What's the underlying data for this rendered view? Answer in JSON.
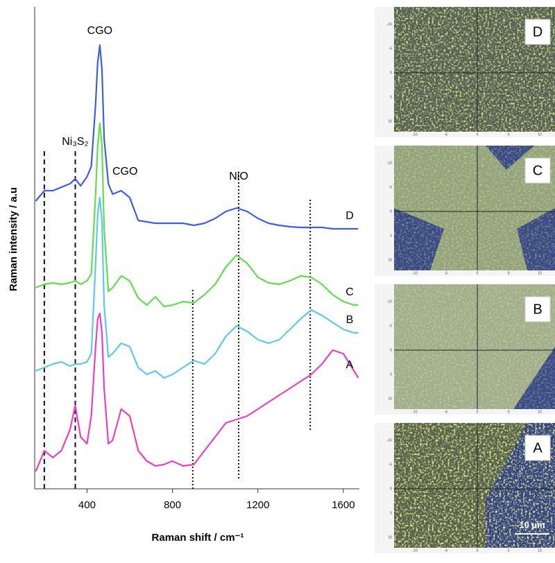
{
  "chart_data": {
    "type": "line",
    "x_label": "Raman shift / cm⁻¹",
    "y_label": "Raman intensity / a.u",
    "x": [
      160,
      200,
      240,
      280,
      320,
      345,
      370,
      400,
      420,
      440,
      450,
      460,
      470,
      480,
      500,
      520,
      560,
      600,
      640,
      680,
      720,
      760,
      800,
      850,
      900,
      950,
      1000,
      1050,
      1100,
      1150,
      1200,
      1250,
      1300,
      1350,
      1400,
      1450,
      1500,
      1550,
      1600,
      1650,
      1670
    ],
    "xlim": [
      155,
      1675
    ],
    "xticks": [
      400,
      800,
      1200,
      1600
    ],
    "ylim": [
      0,
      695
    ],
    "series": [
      {
        "name": "D",
        "color": "#3c5ee6",
        "values": [
          415,
          430,
          430,
          435,
          440,
          447,
          437,
          450,
          465,
          555,
          615,
          640,
          605,
          505,
          440,
          425,
          430,
          420,
          387,
          385,
          383,
          383,
          383,
          383,
          380,
          383,
          390,
          400,
          405,
          400,
          390,
          383,
          380,
          378,
          377,
          377,
          377,
          375,
          375,
          375,
          375
        ]
      },
      {
        "name": "C",
        "color": "#5ee04a",
        "values": [
          290,
          295,
          297,
          295,
          297,
          300,
          295,
          300,
          310,
          425,
          495,
          527,
          495,
          375,
          285,
          290,
          307,
          300,
          275,
          265,
          277,
          263,
          265,
          270,
          268,
          280,
          295,
          320,
          337,
          325,
          305,
          297,
          295,
          300,
          307,
          305,
          295,
          280,
          270,
          265,
          265
        ]
      },
      {
        "name": "B",
        "color": "#5cc8f0",
        "values": [
          170,
          175,
          180,
          183,
          177,
          180,
          180,
          183,
          195,
          325,
          395,
          420,
          385,
          265,
          190,
          195,
          210,
          205,
          175,
          165,
          170,
          160,
          165,
          175,
          185,
          180,
          195,
          220,
          235,
          227,
          215,
          210,
          215,
          230,
          245,
          258,
          250,
          240,
          230,
          225,
          225
        ]
      },
      {
        "name": "A",
        "color": "#ee3ec8",
        "values": [
          25,
          55,
          45,
          55,
          85,
          120,
          75,
          65,
          105,
          205,
          245,
          253,
          225,
          145,
          65,
          70,
          115,
          105,
          55,
          40,
          33,
          35,
          40,
          33,
          35,
          55,
          75,
          95,
          100,
          105,
          115,
          125,
          135,
          145,
          155,
          165,
          180,
          200,
          195,
          170,
          160
        ]
      }
    ],
    "reference_lines": [
      {
        "x": 200,
        "y": [
          0,
          490
        ],
        "style": "dashed"
      },
      {
        "x": 345,
        "y": [
          0,
          490
        ],
        "style": "dashed"
      },
      {
        "x": 895,
        "y": [
          0,
          290
        ],
        "style": "dotted"
      },
      {
        "x": 1110,
        "y": [
          15,
          460
        ],
        "style": "dotted"
      },
      {
        "x": 1445,
        "y": [
          85,
          420
        ],
        "style": "dotted"
      }
    ],
    "annotations": [
      {
        "text": "CGO",
        "x": 460,
        "y": 660
      },
      {
        "text": "Ni₃S₂",
        "x": 345,
        "y": 500
      },
      {
        "text": "CGO",
        "x": 578,
        "y": 457
      },
      {
        "text": "NiO",
        "x": 1110,
        "y": 450
      }
    ]
  },
  "micrographs": {
    "panels": [
      {
        "label": "D"
      },
      {
        "label": "C"
      },
      {
        "label": "B"
      },
      {
        "label": "A"
      }
    ],
    "ticks": [
      -10,
      -5,
      0,
      5,
      10
    ],
    "scale_bar": "10 µm"
  }
}
